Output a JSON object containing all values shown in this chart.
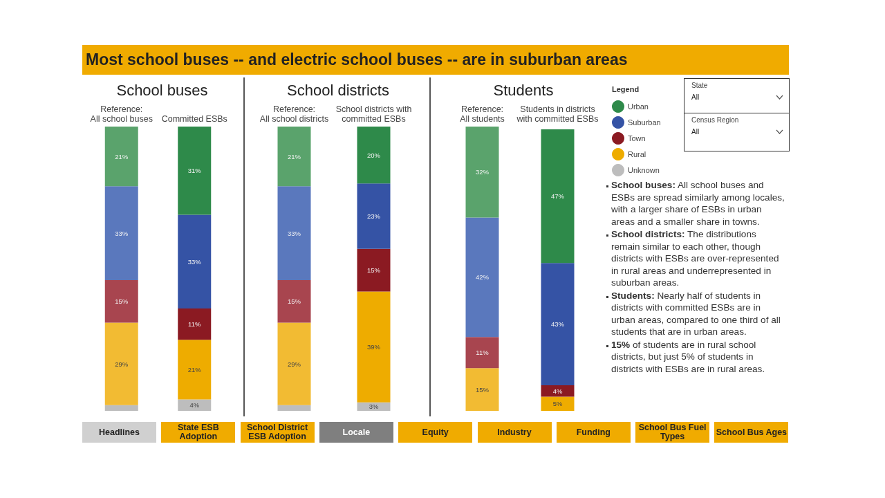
{
  "chart_data": [
    {
      "type": "bar",
      "title": "School buses",
      "categories": [
        "Reference:\nAll school buses",
        "Committed ESBs"
      ],
      "stacked": true,
      "legend": false,
      "series": [
        {
          "color": "#bdbdbd",
          "colors": [
            "#bdbdbd",
            "#bdbdbd"
          ],
          "values": [
            2,
            4
          ],
          "value_labels": [
            null,
            "4%"
          ]
        },
        {
          "color": "#eeac00",
          "colors": [
            "#f2bb33",
            "#eeac00"
          ],
          "values": [
            29,
            21
          ],
          "value_labels": [
            "29%",
            "21%"
          ]
        },
        {
          "color": "#8b1a22",
          "colors": [
            "#a8454f",
            "#8b1a22"
          ],
          "values": [
            15,
            11
          ],
          "value_labels": [
            "15%",
            "11%"
          ]
        },
        {
          "color": "#3553a5",
          "colors": [
            "#5a78bd",
            "#3553a5"
          ],
          "values": [
            33,
            33
          ],
          "value_labels": [
            "33%",
            "33%"
          ]
        },
        {
          "color": "#2e8a4a",
          "colors": [
            "#5aa36c",
            "#2e8a4a"
          ],
          "values": [
            21,
            31
          ],
          "value_labels": [
            "21%",
            "31%"
          ]
        }
      ]
    },
    {
      "type": "bar",
      "title": "School districts",
      "categories": [
        "Reference:\nAll school districts",
        "School districts with\ncommitted ESBs"
      ],
      "stacked": true,
      "legend": false,
      "series": [
        {
          "color": "#bdbdbd",
          "colors": [
            "#bdbdbd",
            "#bdbdbd"
          ],
          "values": [
            2,
            3
          ],
          "value_labels": [
            null,
            "3%"
          ]
        },
        {
          "color": "#eeac00",
          "colors": [
            "#f2bb33",
            "#eeac00"
          ],
          "values": [
            29,
            39
          ],
          "value_labels": [
            "29%",
            "39%"
          ]
        },
        {
          "color": "#8b1a22",
          "colors": [
            "#a8454f",
            "#8b1a22"
          ],
          "values": [
            15,
            15
          ],
          "value_labels": [
            "15%",
            "15%"
          ]
        },
        {
          "color": "#3553a5",
          "colors": [
            "#5a78bd",
            "#3553a5"
          ],
          "values": [
            33,
            23
          ],
          "value_labels": [
            "33%",
            "23%"
          ]
        },
        {
          "color": "#2e8a4a",
          "colors": [
            "#5aa36c",
            "#2e8a4a"
          ],
          "values": [
            21,
            20
          ],
          "value_labels": [
            "21%",
            "20%"
          ]
        }
      ]
    },
    {
      "type": "bar",
      "title": "Students",
      "categories": [
        "Reference:\nAll students",
        "Students in districts\nwith committed ESBs"
      ],
      "stacked": true,
      "legend": "right",
      "legend_title": "Legend",
      "series": [
        {
          "name": "Unknown",
          "color": "#bdbdbd",
          "colors": [
            "#bdbdbd",
            "#bdbdbd"
          ],
          "values": [
            null,
            null
          ],
          "value_labels": [
            null,
            null
          ]
        },
        {
          "name": "Rural",
          "color": "#eeac00",
          "colors": [
            "#f2bb33",
            "#eeac00"
          ],
          "values": [
            15,
            5
          ],
          "value_labels": [
            "15%",
            "5%"
          ]
        },
        {
          "name": "Town",
          "color": "#8b1a22",
          "colors": [
            "#a8454f",
            "#8b1a22"
          ],
          "values": [
            11,
            4
          ],
          "value_labels": [
            "11%",
            "4%"
          ]
        },
        {
          "name": "Suburban",
          "color": "#3553a5",
          "colors": [
            "#5a78bd",
            "#3553a5"
          ],
          "values": [
            42,
            43
          ],
          "value_labels": [
            "42%",
            "43%"
          ]
        },
        {
          "name": "Urban",
          "color": "#2e8a4a",
          "colors": [
            "#5aa36c",
            "#2e8a4a"
          ],
          "values": [
            32,
            47
          ],
          "value_labels": [
            "32%",
            "47%"
          ]
        }
      ]
    },
    {
      "type": "other",
      "title": "Most school buses -- and electric school buses -- are in suburban areas"
    },
    {
      "type": "other",
      "annotations": [
        "School buses: All school buses and ESBs are spread similarly among locales, with a larger share of ESBs in urban areas and a smaller share in towns.",
        "School districts: The distributions remain similar to each other, though districts with ESBs are over-represented in rural areas and underrepresented in suburban areas.",
        "Students: Nearly half of students in districts with committed ESBs are in urban areas, compared to one third of all students that are in urban areas.",
        "15% of students are in rural school districts, but just 5% of students in districts with ESBs are in rural areas."
      ]
    },
    {
      "type": "other",
      "annotations": [
        "State",
        "All",
        "Census Region",
        "All"
      ]
    },
    {
      "type": "other",
      "annotations": [
        "Headlines",
        "State ESB\nAdoption",
        "School District\nESB Adoption",
        "Locale",
        "Equity",
        "Industry",
        "Funding",
        "School Bus Fuel\nTypes",
        "School Bus Ages"
      ]
    }
  ]
}
